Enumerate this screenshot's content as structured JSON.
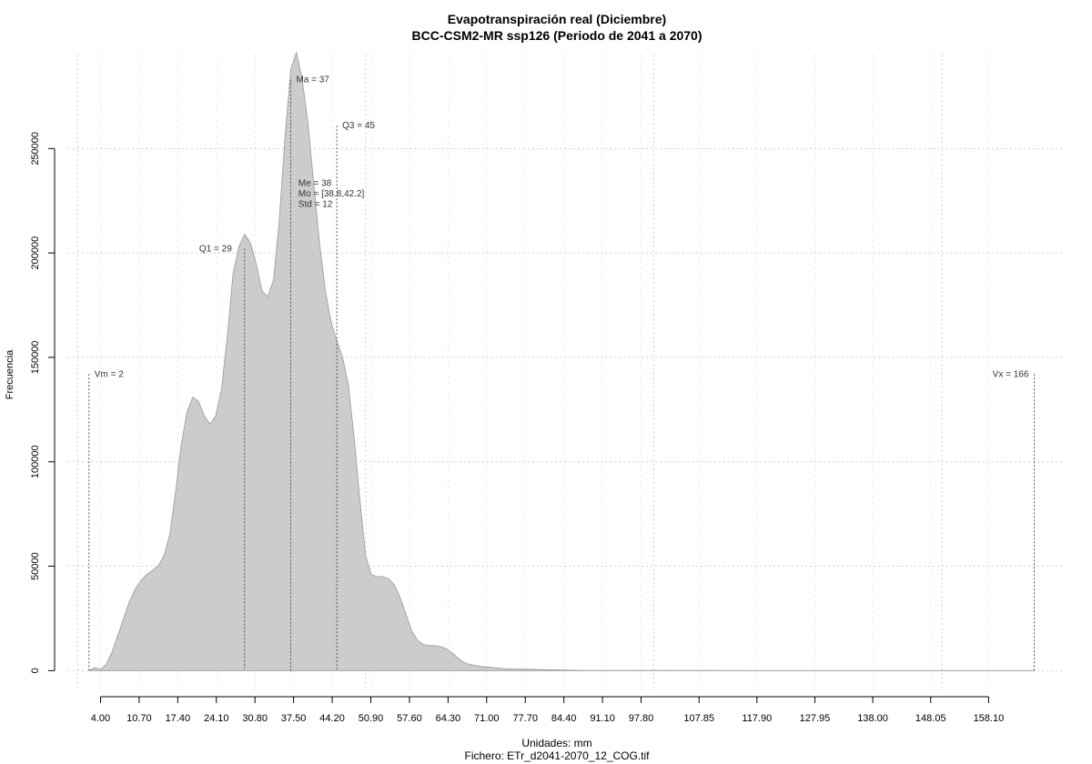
{
  "chart_data": {
    "type": "area",
    "title": "Evapotranspiración real (Diciembre)",
    "subtitle": "BCC-CSM2-MR ssp126 (Periodo de 2041 a 2070)",
    "xlabel": "Unidades: mm",
    "file_caption": "Fichero: ETr_d2041-2070_12_COG.tif",
    "ylabel": "Frecuencia",
    "xlim": [
      -1.6,
      171.3
    ],
    "ylim": [
      -9000,
      295000
    ],
    "grid": true,
    "fill_color": "#cccccc",
    "x_ticks": [
      "4.00",
      "10.70",
      "17.40",
      "24.10",
      "30.80",
      "37.50",
      "44.20",
      "50.90",
      "57.60",
      "64.30",
      "71.00",
      "77.70",
      "84.40",
      "91.10",
      "97.80",
      "107.85",
      "117.90",
      "127.95",
      "138.00",
      "148.05",
      "158.10"
    ],
    "y_ticks": [
      0,
      50000,
      100000,
      150000,
      200000,
      250000
    ],
    "y_tick_labels": [
      "0",
      "50000",
      "100000",
      "150000",
      "200000",
      "250000"
    ],
    "x": [
      2,
      3,
      4,
      5,
      6,
      7,
      8,
      9,
      10,
      11,
      12,
      13,
      14,
      15,
      16,
      17,
      18,
      19,
      20,
      21,
      22,
      23,
      24,
      25,
      26,
      27,
      28,
      29,
      30,
      31,
      32,
      33,
      34,
      35,
      36,
      37,
      38,
      39,
      40,
      41,
      42,
      43,
      44,
      45,
      46,
      47,
      48,
      49,
      50,
      51,
      52,
      53,
      54,
      55,
      56,
      57,
      58,
      59,
      60,
      61,
      62,
      63,
      64,
      65,
      66,
      67,
      68,
      69,
      70,
      72,
      74,
      76,
      78,
      80,
      82,
      84,
      86,
      88,
      90,
      95,
      100,
      110,
      120,
      130,
      140,
      150,
      160,
      166
    ],
    "y": [
      0,
      1500,
      500,
      3000,
      9000,
      17000,
      25000,
      33000,
      39000,
      43000,
      46000,
      48000,
      50000,
      55000,
      65000,
      85000,
      108000,
      124000,
      131000,
      129000,
      122000,
      118000,
      122000,
      135000,
      160000,
      190000,
      203000,
      209000,
      205000,
      195000,
      182000,
      179000,
      187000,
      215000,
      255000,
      288000,
      296000,
      283000,
      262000,
      233000,
      205000,
      182000,
      167000,
      158000,
      150000,
      137000,
      112000,
      82000,
      55000,
      46000,
      45000,
      45000,
      44000,
      41000,
      35000,
      27000,
      19000,
      14500,
      12500,
      12000,
      12000,
      11500,
      10500,
      8500,
      6000,
      4000,
      3000,
      2500,
      2000,
      1500,
      1000,
      800,
      700,
      600,
      400,
      300,
      200,
      100,
      100,
      80,
      60,
      40,
      20,
      10,
      5,
      3,
      1,
      0
    ],
    "annotations": [
      {
        "label": "Vm = 2",
        "x": 2,
        "y_top": 142000
      },
      {
        "label": "Q1 = 29",
        "x": 29,
        "y_top": 202000
      },
      {
        "label": "Ma = 37",
        "x": 37,
        "y_top": 283000
      },
      {
        "label": "Q3 = 45",
        "x": 45,
        "y_top": 261000
      },
      {
        "label": "Vx = 166",
        "x": 166,
        "y_top": 142000
      }
    ],
    "stats": [
      "Me = 38",
      "Mo = [38.8,42.2]",
      "Std = 12"
    ],
    "stats_x": 38,
    "stats_y": 232000
  }
}
